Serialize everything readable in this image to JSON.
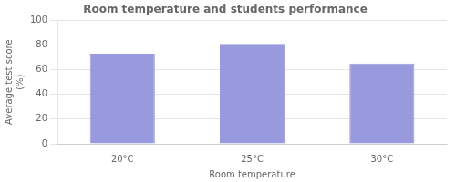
{
  "chart_data": {
    "type": "bar",
    "title": "Room temperature and students performance",
    "categories": [
      "20°C",
      "25°C",
      "30°C"
    ],
    "values": [
      73,
      81,
      65
    ],
    "color": "#9999dd",
    "xlabel": "Room temperature",
    "ylabel": "Average test score\n(%)",
    "ylim": [
      0,
      100
    ],
    "yticks": [
      0,
      20,
      40,
      60,
      80,
      100
    ],
    "grid": true
  }
}
